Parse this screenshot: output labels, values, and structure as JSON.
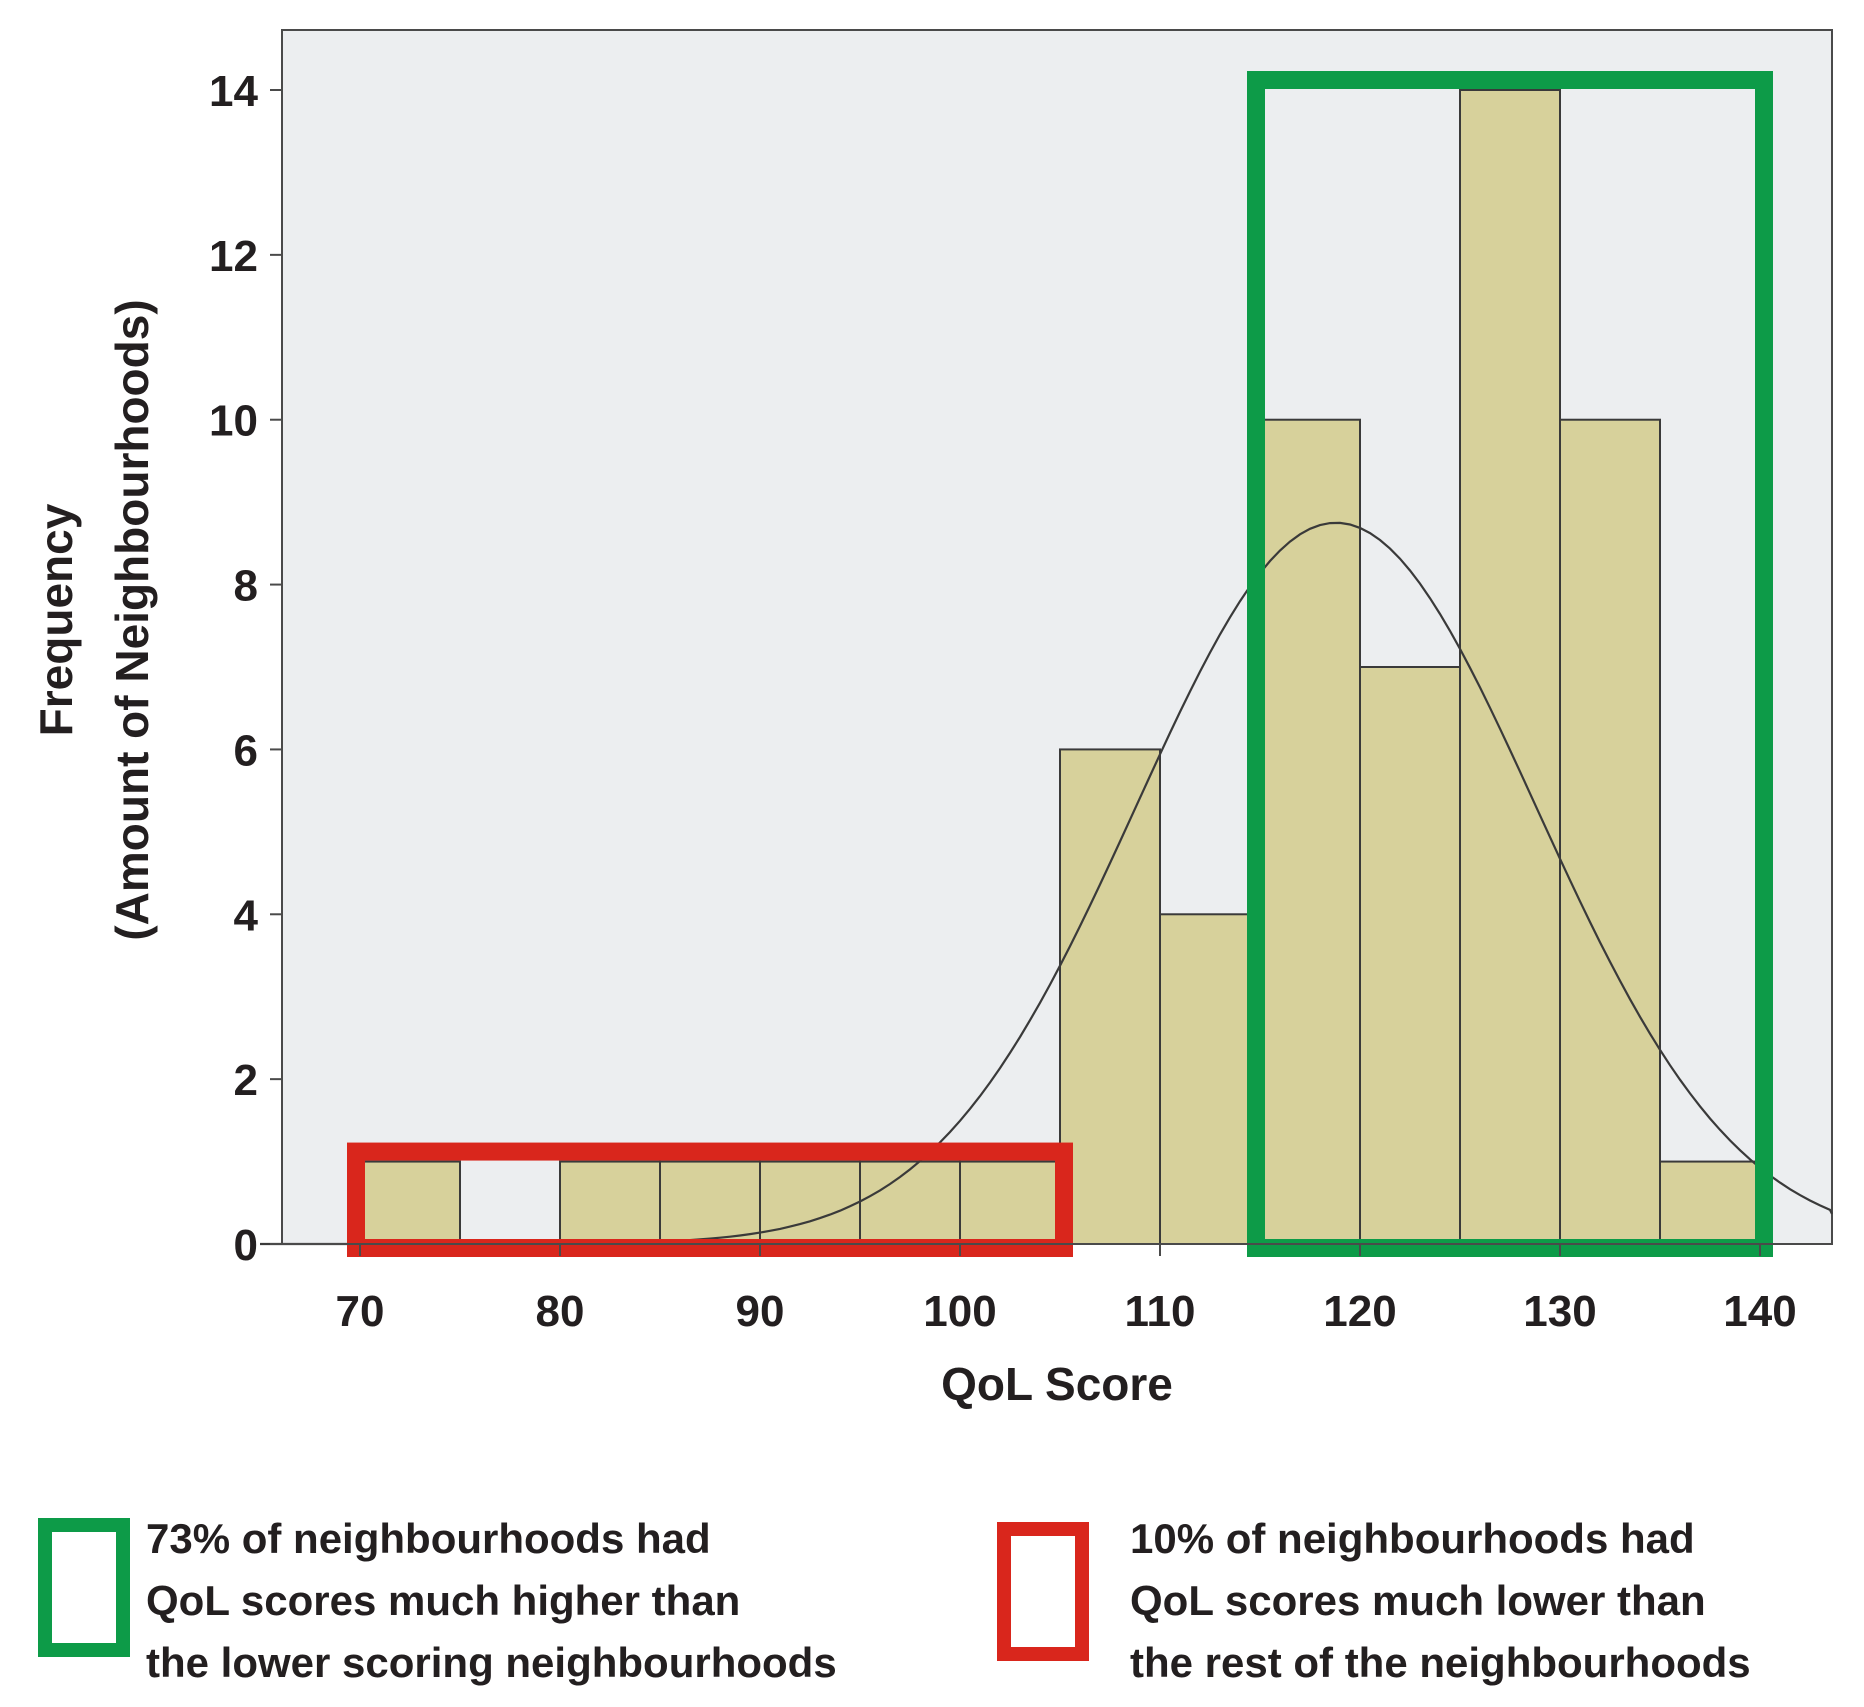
{
  "chart_data": {
    "type": "bar",
    "title": "",
    "xlabel": "QoL Score",
    "ylabel_line1": "Frequency",
    "ylabel_line2": "(Amount of Neighbourhoods)",
    "xlim": [
      65,
      144
    ],
    "ylim": [
      0,
      15
    ],
    "grid": false,
    "bin_width": 5,
    "bin_starts": [
      70,
      75,
      80,
      85,
      90,
      95,
      100,
      105,
      110,
      115,
      120,
      125,
      130,
      135
    ],
    "values": [
      1,
      0,
      1,
      1,
      1,
      1,
      1,
      6,
      4,
      10,
      7,
      14,
      10,
      1
    ],
    "x_ticks": [
      70,
      80,
      90,
      100,
      110,
      120,
      130,
      140
    ],
    "y_ticks": [
      0,
      2,
      4,
      6,
      8,
      10,
      12,
      14
    ],
    "normal_curve": {
      "mean": 118.8,
      "sd": 10.0,
      "peak": 8.75
    },
    "highlights": [
      {
        "name": "low",
        "range": [
          70,
          105
        ],
        "height": 1,
        "color": "#d9261c"
      },
      {
        "name": "high",
        "range": [
          115,
          140
        ],
        "height": 14,
        "color": "#0d9b48"
      }
    ],
    "colors": {
      "bar_fill": "#d7d19b",
      "bar_stroke": "#3a3a3a",
      "plot_bg": "#eceef0",
      "curve": "#3a3a3a"
    }
  },
  "legend": {
    "green": {
      "color": "#0d9b48",
      "lines": [
        "73% of neighbourhoods had",
        "QoL scores much higher than",
        "the lower scoring neighbourhoods"
      ]
    },
    "red": {
      "color": "#d9261c",
      "lines": [
        "10% of neighbourhoods had",
        "QoL scores much lower than",
        "the rest of the neighbourhoods"
      ]
    }
  }
}
